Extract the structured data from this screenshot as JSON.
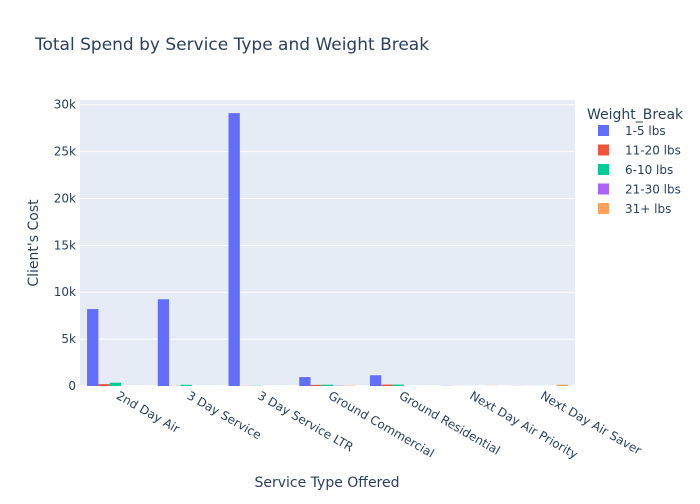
{
  "chart_data": {
    "type": "bar",
    "title": "Total Spend by Service Type and Weight Break",
    "xlabel": "Service Type Offered",
    "ylabel": "Client's Cost",
    "legend_title": "Weight_Break",
    "legend_position": "right",
    "grid": true,
    "ylim": [
      0,
      30500
    ],
    "yticks": [
      0,
      5000,
      10000,
      15000,
      20000,
      25000,
      30000
    ],
    "ytick_labels": [
      "0",
      "5k",
      "10k",
      "15k",
      "20k",
      "25k",
      "30k"
    ],
    "categories": [
      "2nd Day Air",
      "3 Day Service",
      "3 Day Service LTR",
      "Ground Commercial",
      "Ground Residential",
      "Next Day Air Priority",
      "Next Day Air Saver"
    ],
    "series": [
      {
        "name": "1-5 lbs",
        "color": "#636efa",
        "values": [
          8200,
          9250,
          29100,
          950,
          1150,
          20,
          15
        ]
      },
      {
        "name": "11-20 lbs",
        "color": "#ef553b",
        "values": [
          200,
          20,
          20,
          120,
          150,
          10,
          10
        ]
      },
      {
        "name": "6-10 lbs",
        "color": "#00cc96",
        "values": [
          350,
          130,
          30,
          140,
          150,
          10,
          10
        ]
      },
      {
        "name": "21-30 lbs",
        "color": "#ab63fa",
        "values": [
          0,
          0,
          0,
          40,
          0,
          0,
          0
        ]
      },
      {
        "name": "31+ lbs",
        "color": "#ffa15a",
        "values": [
          0,
          0,
          0,
          40,
          0,
          20,
          140
        ]
      }
    ]
  }
}
